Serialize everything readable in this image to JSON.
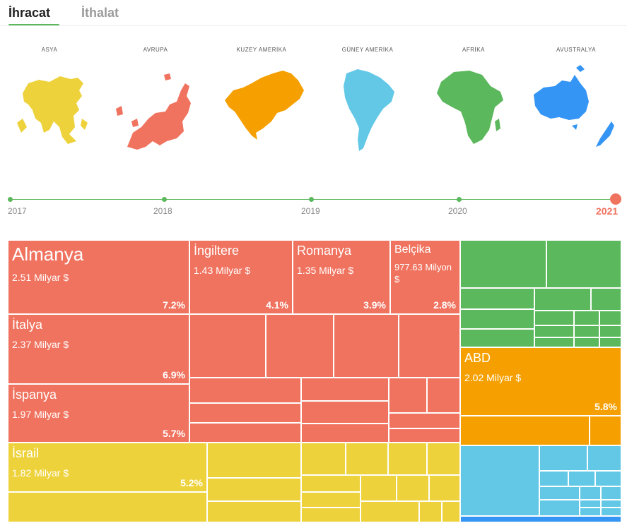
{
  "tabs": [
    {
      "label": "İhracat",
      "active": true
    },
    {
      "label": "İthalat",
      "active": false
    }
  ],
  "continents": [
    {
      "label": "ASYA",
      "color": "#eed23c",
      "icon": "asia-map-icon"
    },
    {
      "label": "AVRUPA",
      "color": "#f0735f",
      "icon": "europe-map-icon"
    },
    {
      "label": "KUZEY AMERİKA",
      "color": "#f5a000",
      "icon": "north-america-map-icon"
    },
    {
      "label": "GÜNEY AMERİKA",
      "color": "#62c8e6",
      "icon": "south-america-map-icon"
    },
    {
      "label": "AFRİKA",
      "color": "#5bb85c",
      "icon": "africa-map-icon"
    },
    {
      "label": "AVUSTRALYA",
      "color": "#3595f5",
      "icon": "australia-map-icon"
    }
  ],
  "timeline": {
    "years": [
      "2017",
      "2018",
      "2019",
      "2020",
      "2021"
    ],
    "active_year": "2021"
  },
  "colors": {
    "avrupa": "#f0735f",
    "asya": "#eed23c",
    "afrika": "#5bb85c",
    "kuzey_amerika": "#f5a000",
    "guney_amerika": "#62c8e6",
    "avustralya": "#3595f5"
  },
  "treemap": {
    "labeled": [
      {
        "name": "Almanya",
        "value": "2.51 Milyar $",
        "percent": "7.2%"
      },
      {
        "name": "İngiltere",
        "value": "1.43 Milyar $",
        "percent": "4.1%"
      },
      {
        "name": "Romanya",
        "value": "1.35 Milyar $",
        "percent": "3.9%"
      },
      {
        "name": "Belçika",
        "value": "977.63 Milyon $",
        "percent": "2.8%"
      },
      {
        "name": "İtalya",
        "value": "2.37 Milyar $",
        "percent": "6.9%"
      },
      {
        "name": "İspanya",
        "value": "1.97 Milyar $",
        "percent": "5.7%"
      },
      {
        "name": "İsrail",
        "value": "1.82 Milyar $",
        "percent": "5.2%"
      },
      {
        "name": "ABD",
        "value": "2.02 Milyar $",
        "percent": "5.8%"
      }
    ]
  }
}
